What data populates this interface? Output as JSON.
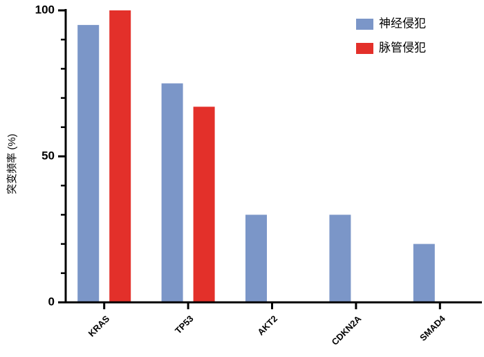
{
  "chart_data": {
    "type": "bar",
    "categories": [
      "KRAS",
      "TP53",
      "AKT2",
      "CDKN2A",
      "SMAD4"
    ],
    "series": [
      {
        "name": "神经侵犯",
        "color": "#7b96c8",
        "values": [
          95,
          75,
          30,
          30,
          20
        ]
      },
      {
        "name": "脉管侵犯",
        "color": "#e3302a",
        "values": [
          100,
          67,
          0,
          0,
          0
        ]
      }
    ],
    "y_label": "突变频率 (%)",
    "ylim": [
      0,
      100
    ],
    "yticks": [
      0,
      50,
      100
    ],
    "minor_yticks": [
      10,
      20,
      30,
      40,
      60,
      70,
      80,
      90
    ],
    "legend": "top-right"
  }
}
